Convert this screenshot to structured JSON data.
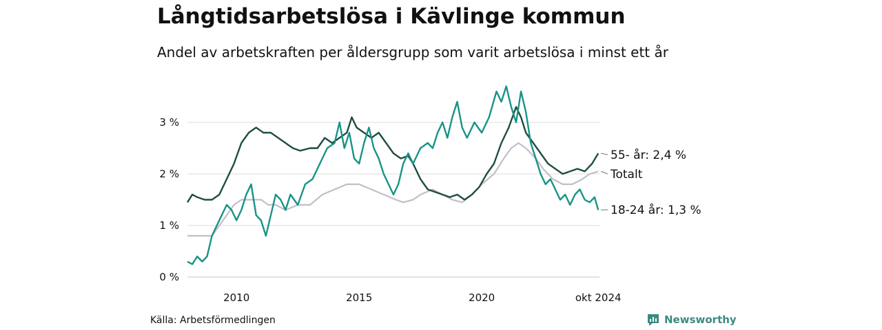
{
  "title": "Långtidsarbetslösa i Kävlinge kommun",
  "subtitle": "Andel av arbetskraften per åldersgrupp som varit arbetslösa i minst ett år",
  "source": "Källa: Arbetsförmedlingen",
  "brand": "Newsworthy",
  "chart_data": {
    "type": "line",
    "x_ticks": [
      {
        "x": 2010,
        "label": "2010"
      },
      {
        "x": 2015,
        "label": "2015"
      },
      {
        "x": 2020,
        "label": "2020"
      },
      {
        "x": 2024.75,
        "label": "okt 2024"
      }
    ],
    "y_ticks": [
      {
        "y": 0,
        "label": "0 %"
      },
      {
        "y": 1,
        "label": "1 %"
      },
      {
        "y": 2,
        "label": "2 %"
      },
      {
        "y": 3,
        "label": "3 %"
      }
    ],
    "xlim": [
      2008.0,
      2024.8
    ],
    "ylim": [
      0,
      3.35
    ],
    "grid": true,
    "series": [
      {
        "key": "total",
        "name": "Totalt",
        "end_label": "Totalt",
        "color": "#c3bdc9",
        "points": [
          [
            2008.0,
            0.8
          ],
          [
            2009.0,
            0.8
          ],
          [
            2009.3,
            1.0
          ],
          [
            2009.6,
            1.2
          ],
          [
            2009.9,
            1.4
          ],
          [
            2010.2,
            1.5
          ],
          [
            2010.6,
            1.5
          ],
          [
            2011.0,
            1.5
          ],
          [
            2011.3,
            1.4
          ],
          [
            2011.6,
            1.4
          ],
          [
            2012.0,
            1.3
          ],
          [
            2012.5,
            1.4
          ],
          [
            2013.0,
            1.4
          ],
          [
            2013.5,
            1.6
          ],
          [
            2014.0,
            1.7
          ],
          [
            2014.5,
            1.8
          ],
          [
            2015.0,
            1.8
          ],
          [
            2015.5,
            1.7
          ],
          [
            2016.0,
            1.6
          ],
          [
            2016.5,
            1.5
          ],
          [
            2016.8,
            1.45
          ],
          [
            2017.2,
            1.5
          ],
          [
            2017.5,
            1.6
          ],
          [
            2018.0,
            1.7
          ],
          [
            2018.4,
            1.6
          ],
          [
            2018.8,
            1.5
          ],
          [
            2019.2,
            1.45
          ],
          [
            2019.6,
            1.6
          ],
          [
            2020.0,
            1.8
          ],
          [
            2020.5,
            2.0
          ],
          [
            2020.9,
            2.3
          ],
          [
            2021.2,
            2.5
          ],
          [
            2021.5,
            2.6
          ],
          [
            2021.8,
            2.5
          ],
          [
            2022.2,
            2.3
          ],
          [
            2022.5,
            2.1
          ],
          [
            2022.9,
            1.9
          ],
          [
            2023.3,
            1.8
          ],
          [
            2023.7,
            1.8
          ],
          [
            2024.1,
            1.9
          ],
          [
            2024.4,
            2.0
          ],
          [
            2024.75,
            2.05
          ]
        ]
      },
      {
        "key": "age55",
        "name": "55- år",
        "end_label": "55- år: 2,4 %",
        "color": "#1f4c42",
        "points": [
          [
            2008.0,
            1.45
          ],
          [
            2008.2,
            1.6
          ],
          [
            2008.4,
            1.55
          ],
          [
            2008.7,
            1.5
          ],
          [
            2009.0,
            1.5
          ],
          [
            2009.3,
            1.6
          ],
          [
            2009.6,
            1.9
          ],
          [
            2009.9,
            2.2
          ],
          [
            2010.2,
            2.6
          ],
          [
            2010.5,
            2.8
          ],
          [
            2010.8,
            2.9
          ],
          [
            2011.1,
            2.8
          ],
          [
            2011.4,
            2.8
          ],
          [
            2011.7,
            2.7
          ],
          [
            2012.0,
            2.6
          ],
          [
            2012.3,
            2.5
          ],
          [
            2012.6,
            2.45
          ],
          [
            2013.0,
            2.5
          ],
          [
            2013.3,
            2.5
          ],
          [
            2013.6,
            2.7
          ],
          [
            2013.9,
            2.6
          ],
          [
            2014.2,
            2.7
          ],
          [
            2014.5,
            2.8
          ],
          [
            2014.7,
            3.1
          ],
          [
            2014.9,
            2.9
          ],
          [
            2015.2,
            2.8
          ],
          [
            2015.5,
            2.7
          ],
          [
            2015.8,
            2.8
          ],
          [
            2016.1,
            2.6
          ],
          [
            2016.4,
            2.4
          ],
          [
            2016.7,
            2.3
          ],
          [
            2017.0,
            2.35
          ],
          [
            2017.2,
            2.2
          ],
          [
            2017.5,
            1.9
          ],
          [
            2017.8,
            1.7
          ],
          [
            2018.1,
            1.65
          ],
          [
            2018.4,
            1.6
          ],
          [
            2018.7,
            1.55
          ],
          [
            2019.0,
            1.6
          ],
          [
            2019.3,
            1.5
          ],
          [
            2019.6,
            1.6
          ],
          [
            2019.9,
            1.75
          ],
          [
            2020.2,
            2.0
          ],
          [
            2020.5,
            2.2
          ],
          [
            2020.8,
            2.6
          ],
          [
            2021.1,
            2.9
          ],
          [
            2021.4,
            3.3
          ],
          [
            2021.6,
            3.1
          ],
          [
            2021.8,
            2.8
          ],
          [
            2022.1,
            2.6
          ],
          [
            2022.4,
            2.4
          ],
          [
            2022.7,
            2.2
          ],
          [
            2023.0,
            2.1
          ],
          [
            2023.3,
            2.0
          ],
          [
            2023.6,
            2.05
          ],
          [
            2023.9,
            2.1
          ],
          [
            2024.2,
            2.05
          ],
          [
            2024.5,
            2.2
          ],
          [
            2024.75,
            2.4
          ]
        ]
      },
      {
        "key": "age1824",
        "name": "18-24 år",
        "end_label": "18-24 år: 1,3 %",
        "color": "#179385",
        "points": [
          [
            2008.0,
            0.3
          ],
          [
            2008.2,
            0.25
          ],
          [
            2008.4,
            0.4
          ],
          [
            2008.6,
            0.3
          ],
          [
            2008.8,
            0.4
          ],
          [
            2009.0,
            0.8
          ],
          [
            2009.2,
            1.0
          ],
          [
            2009.4,
            1.2
          ],
          [
            2009.6,
            1.4
          ],
          [
            2009.8,
            1.3
          ],
          [
            2010.0,
            1.1
          ],
          [
            2010.2,
            1.3
          ],
          [
            2010.4,
            1.6
          ],
          [
            2010.6,
            1.8
          ],
          [
            2010.8,
            1.2
          ],
          [
            2011.0,
            1.1
          ],
          [
            2011.2,
            0.8
          ],
          [
            2011.4,
            1.2
          ],
          [
            2011.6,
            1.6
          ],
          [
            2011.8,
            1.5
          ],
          [
            2012.0,
            1.3
          ],
          [
            2012.2,
            1.6
          ],
          [
            2012.5,
            1.4
          ],
          [
            2012.8,
            1.8
          ],
          [
            2013.1,
            1.9
          ],
          [
            2013.4,
            2.2
          ],
          [
            2013.7,
            2.5
          ],
          [
            2014.0,
            2.6
          ],
          [
            2014.2,
            3.0
          ],
          [
            2014.4,
            2.5
          ],
          [
            2014.6,
            2.8
          ],
          [
            2014.8,
            2.3
          ],
          [
            2015.0,
            2.2
          ],
          [
            2015.2,
            2.6
          ],
          [
            2015.4,
            2.9
          ],
          [
            2015.6,
            2.5
          ],
          [
            2015.8,
            2.3
          ],
          [
            2016.0,
            2.0
          ],
          [
            2016.2,
            1.8
          ],
          [
            2016.4,
            1.6
          ],
          [
            2016.6,
            1.8
          ],
          [
            2016.8,
            2.2
          ],
          [
            2017.0,
            2.4
          ],
          [
            2017.2,
            2.2
          ],
          [
            2017.5,
            2.5
          ],
          [
            2017.8,
            2.6
          ],
          [
            2018.0,
            2.5
          ],
          [
            2018.2,
            2.8
          ],
          [
            2018.4,
            3.0
          ],
          [
            2018.6,
            2.7
          ],
          [
            2018.8,
            3.1
          ],
          [
            2019.0,
            3.4
          ],
          [
            2019.2,
            2.9
          ],
          [
            2019.4,
            2.7
          ],
          [
            2019.7,
            3.0
          ],
          [
            2020.0,
            2.8
          ],
          [
            2020.3,
            3.1
          ],
          [
            2020.6,
            3.6
          ],
          [
            2020.8,
            3.4
          ],
          [
            2021.0,
            3.7
          ],
          [
            2021.2,
            3.3
          ],
          [
            2021.4,
            3.0
          ],
          [
            2021.6,
            3.6
          ],
          [
            2021.8,
            3.2
          ],
          [
            2022.0,
            2.6
          ],
          [
            2022.2,
            2.3
          ],
          [
            2022.4,
            2.0
          ],
          [
            2022.6,
            1.8
          ],
          [
            2022.8,
            1.9
          ],
          [
            2023.0,
            1.7
          ],
          [
            2023.2,
            1.5
          ],
          [
            2023.4,
            1.6
          ],
          [
            2023.6,
            1.4
          ],
          [
            2023.8,
            1.6
          ],
          [
            2024.0,
            1.7
          ],
          [
            2024.2,
            1.5
          ],
          [
            2024.4,
            1.45
          ],
          [
            2024.6,
            1.55
          ],
          [
            2024.75,
            1.3
          ]
        ]
      }
    ]
  }
}
